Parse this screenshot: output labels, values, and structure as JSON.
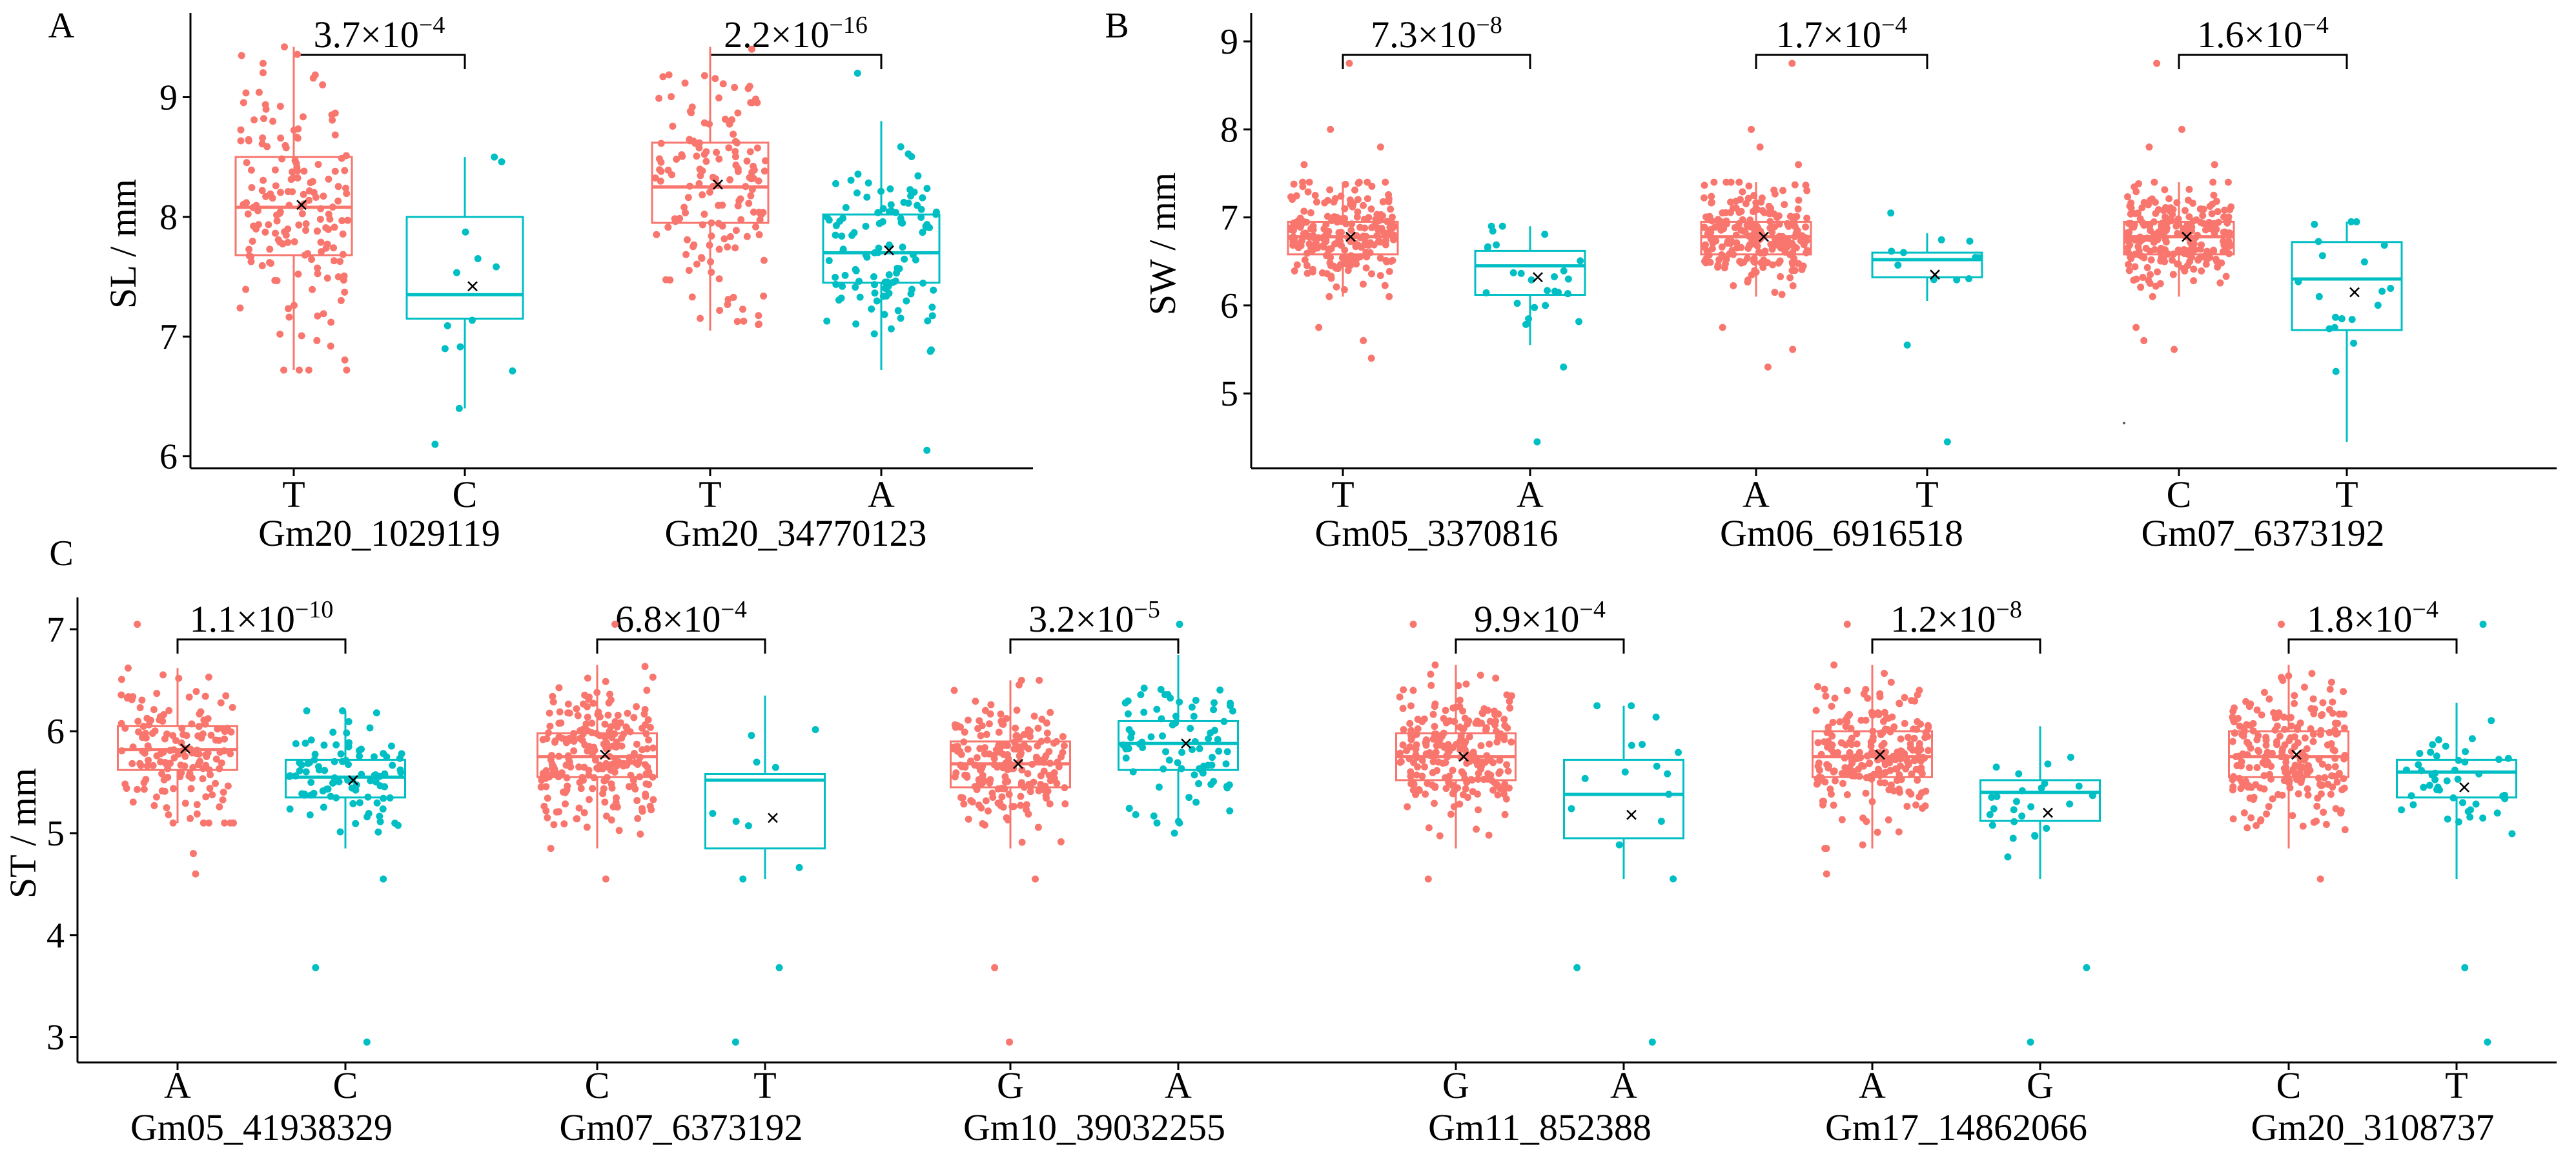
{
  "panels": [
    {
      "id": "A",
      "letter": "A",
      "ylabel": "SL / mm",
      "yticks": [
        6,
        7,
        8,
        9
      ],
      "ylim": [
        5.9,
        9.65
      ],
      "groups": [
        {
          "snp": "Gm20_1029119",
          "pvalue": "3.7×10",
          "pexp": "−4",
          "boxes": [
            {
              "allele": "T",
              "color": "#F8766D",
              "min": 6.72,
              "q1": 7.68,
              "median": 8.08,
              "q3": 8.5,
              "max": 9.42,
              "mean": 8.1,
              "n": 170,
              "outliers": []
            },
            {
              "allele": "C",
              "color": "#00BFC4",
              "min": 6.4,
              "q1": 7.15,
              "median": 7.35,
              "q3": 8.0,
              "max": 8.5,
              "mean": 7.42,
              "n": 12,
              "outliers": [
                6.1
              ]
            }
          ]
        },
        {
          "snp": "Gm20_34770123",
          "pvalue": "2.2×10",
          "pexp": "−16",
          "boxes": [
            {
              "allele": "T",
              "color": "#F8766D",
              "min": 7.05,
              "q1": 7.95,
              "median": 8.25,
              "q3": 8.62,
              "max": 9.42,
              "mean": 8.27,
              "n": 150,
              "outliers": []
            },
            {
              "allele": "A",
              "color": "#00BFC4",
              "min": 6.72,
              "q1": 7.45,
              "median": 7.7,
              "q3": 8.02,
              "max": 8.8,
              "mean": 7.72,
              "n": 110,
              "outliers": [
                6.05,
                9.2
              ]
            }
          ]
        }
      ]
    },
    {
      "id": "B",
      "letter": "B",
      "ylabel": "SW / mm",
      "yticks": [
        5,
        6,
        7,
        8,
        9
      ],
      "ylim": [
        4.15,
        9.25
      ],
      "groups": [
        {
          "snp": "Gm05_3370816",
          "pvalue": "7.3×10",
          "pexp": "−8",
          "boxes": [
            {
              "allele": "T",
              "color": "#F8766D",
              "min": 6.1,
              "q1": 6.58,
              "median": 6.78,
              "q3": 6.95,
              "max": 7.4,
              "mean": 6.78,
              "n": 230,
              "outliers": [
                5.4,
                5.6,
                5.75,
                7.6,
                7.8,
                8.0,
                8.75
              ]
            },
            {
              "allele": "A",
              "color": "#00BFC4",
              "min": 5.55,
              "q1": 6.12,
              "median": 6.45,
              "q3": 6.62,
              "max": 6.9,
              "mean": 6.32,
              "n": 25,
              "outliers": [
                5.3,
                4.45
              ]
            }
          ]
        },
        {
          "snp": "Gm06_6916518",
          "pvalue": "1.7×10",
          "pexp": "−4",
          "boxes": [
            {
              "allele": "A",
              "color": "#F8766D",
              "min": 6.1,
              "q1": 6.58,
              "median": 6.78,
              "q3": 6.95,
              "max": 7.4,
              "mean": 6.78,
              "n": 230,
              "outliers": [
                5.3,
                5.5,
                5.75,
                7.6,
                7.8,
                8.0,
                8.75
              ]
            },
            {
              "allele": "T",
              "color": "#00BFC4",
              "min": 6.05,
              "q1": 6.32,
              "median": 6.52,
              "q3": 6.6,
              "max": 6.82,
              "mean": 6.35,
              "n": 10,
              "outliers": [
                5.55,
                7.05,
                4.45
              ]
            }
          ]
        },
        {
          "snp": "Gm07_6373192",
          "pvalue": "1.6×10",
          "pexp": "−4",
          "boxes": [
            {
              "allele": "C",
              "color": "#F8766D",
              "min": 6.1,
              "q1": 6.58,
              "median": 6.78,
              "q3": 6.95,
              "max": 7.4,
              "mean": 6.78,
              "n": 230,
              "outliers": [
                5.5,
                5.6,
                5.75,
                7.6,
                7.8,
                8.0,
                8.75
              ]
            },
            {
              "allele": "T",
              "color": "#00BFC4",
              "min": 4.45,
              "q1": 5.72,
              "median": 6.3,
              "q3": 6.72,
              "max": 6.95,
              "mean": 6.15,
              "n": 18,
              "outliers": [
                5.25
              ]
            }
          ]
        }
      ]
    },
    {
      "id": "C",
      "letter": "C",
      "ylabel": "ST / mm",
      "yticks": [
        3,
        4,
        5,
        6,
        7
      ],
      "ylim": [
        2.75,
        7.25
      ],
      "groups": [
        {
          "snp": "Gm05_41938329",
          "pvalue": "1.1×10",
          "pexp": "−10",
          "boxes": [
            {
              "allele": "A",
              "color": "#F8766D",
              "min": 5.1,
              "q1": 5.62,
              "median": 5.82,
              "q3": 6.05,
              "max": 6.62,
              "mean": 5.83,
              "n": 160,
              "outliers": [
                4.6,
                4.8,
                7.05
              ]
            },
            {
              "allele": "C",
              "color": "#00BFC4",
              "min": 4.85,
              "q1": 5.35,
              "median": 5.55,
              "q3": 5.72,
              "max": 6.2,
              "mean": 5.52,
              "n": 95,
              "outliers": [
                4.55,
                3.68,
                2.95
              ]
            }
          ]
        },
        {
          "snp": "Gm07_6373192",
          "pvalue": "6.8×10",
          "pexp": "−4",
          "boxes": [
            {
              "allele": "C",
              "color": "#F8766D",
              "min": 4.85,
              "q1": 5.55,
              "median": 5.75,
              "q3": 5.98,
              "max": 6.65,
              "mean": 5.77,
              "n": 230,
              "outliers": [
                4.55,
                7.05
              ]
            },
            {
              "allele": "T",
              "color": "#00BFC4",
              "min": 4.55,
              "q1": 4.85,
              "median": 5.52,
              "q3": 5.58,
              "max": 6.35,
              "mean": 5.15,
              "n": 9,
              "outliers": [
                3.68,
                2.95
              ]
            }
          ]
        },
        {
          "snp": "Gm10_39032255",
          "pvalue": "3.2×10",
          "pexp": "−5",
          "boxes": [
            {
              "allele": "G",
              "color": "#F8766D",
              "min": 4.85,
              "q1": 5.45,
              "median": 5.68,
              "q3": 5.9,
              "max": 6.5,
              "mean": 5.68,
              "n": 200,
              "outliers": [
                4.55,
                3.68,
                2.95
              ]
            },
            {
              "allele": "A",
              "color": "#00BFC4",
              "min": 5.1,
              "q1": 5.62,
              "median": 5.88,
              "q3": 6.1,
              "max": 6.75,
              "mean": 5.88,
              "n": 80,
              "outliers": [
                5.0,
                7.05
              ]
            }
          ]
        },
        {
          "snp": "Gm11_852388",
          "pvalue": "9.9×10",
          "pexp": "−4",
          "boxes": [
            {
              "allele": "G",
              "color": "#F8766D",
              "min": 4.85,
              "q1": 5.52,
              "median": 5.75,
              "q3": 5.98,
              "max": 6.65,
              "mean": 5.75,
              "n": 230,
              "outliers": [
                4.55,
                7.05
              ]
            },
            {
              "allele": "A",
              "color": "#00BFC4",
              "min": 4.55,
              "q1": 4.95,
              "median": 5.38,
              "q3": 5.72,
              "max": 6.25,
              "mean": 5.18,
              "n": 15,
              "outliers": [
                3.68,
                2.95
              ]
            }
          ]
        },
        {
          "snp": "Gm17_14862066",
          "pvalue": "1.2×10",
          "pexp": "−8",
          "boxes": [
            {
              "allele": "A",
              "color": "#F8766D",
              "min": 4.85,
              "q1": 5.55,
              "median": 5.75,
              "q3": 6.0,
              "max": 6.65,
              "mean": 5.77,
              "n": 230,
              "outliers": [
                4.6,
                7.05
              ]
            },
            {
              "allele": "G",
              "color": "#00BFC4",
              "min": 4.55,
              "q1": 5.12,
              "median": 5.4,
              "q3": 5.52,
              "max": 6.05,
              "mean": 5.2,
              "n": 25,
              "outliers": [
                3.68,
                2.95
              ]
            }
          ]
        },
        {
          "snp": "Gm20_3108737",
          "pvalue": "1.8×10",
          "pexp": "−4",
          "boxes": [
            {
              "allele": "C",
              "color": "#F8766D",
              "min": 4.85,
              "q1": 5.55,
              "median": 5.75,
              "q3": 6.0,
              "max": 6.65,
              "mean": 5.77,
              "n": 230,
              "outliers": [
                4.55,
                7.05
              ]
            },
            {
              "allele": "T",
              "color": "#00BFC4",
              "min": 4.55,
              "q1": 5.35,
              "median": 5.6,
              "q3": 5.72,
              "max": 6.28,
              "mean": 5.45,
              "n": 45,
              "outliers": [
                7.05,
                3.68,
                2.95
              ]
            }
          ]
        }
      ]
    }
  ],
  "chart_data": [
    {
      "type": "box",
      "title": "A",
      "ylabel": "SL / mm",
      "ylim": [
        5.9,
        9.65
      ],
      "categories": [
        "T (Gm20_1029119)",
        "C (Gm20_1029119)",
        "T (Gm20_34770123)",
        "A (Gm20_34770123)"
      ],
      "pvalues": [
        "3.7×10^−4",
        "2.2×10^−16"
      ]
    },
    {
      "type": "box",
      "title": "B",
      "ylabel": "SW / mm",
      "ylim": [
        4.15,
        9.25
      ],
      "categories": [
        "T (Gm05_3370816)",
        "A (Gm05_3370816)",
        "A (Gm06_6916518)",
        "T (Gm06_6916518)",
        "C (Gm07_6373192)",
        "T (Gm07_6373192)"
      ],
      "pvalues": [
        "7.3×10^−8",
        "1.7×10^−4",
        "1.6×10^−4"
      ]
    },
    {
      "type": "box",
      "title": "C",
      "ylabel": "ST / mm",
      "ylim": [
        2.75,
        7.25
      ],
      "categories": [
        "A (Gm05_41938329)",
        "C (Gm05_41938329)",
        "C (Gm07_6373192)",
        "T (Gm07_6373192)",
        "G (Gm10_39032255)",
        "A (Gm10_39032255)",
        "G (Gm11_852388)",
        "A (Gm11_852388)",
        "A (Gm17_14862066)",
        "G (Gm17_14862066)",
        "C (Gm20_3108737)",
        "T (Gm20_3108737)"
      ],
      "pvalues": [
        "1.1×10^−10",
        "6.8×10^−4",
        "3.2×10^−5",
        "9.9×10^−4",
        "1.2×10^−8",
        "1.8×10^−4"
      ]
    }
  ]
}
